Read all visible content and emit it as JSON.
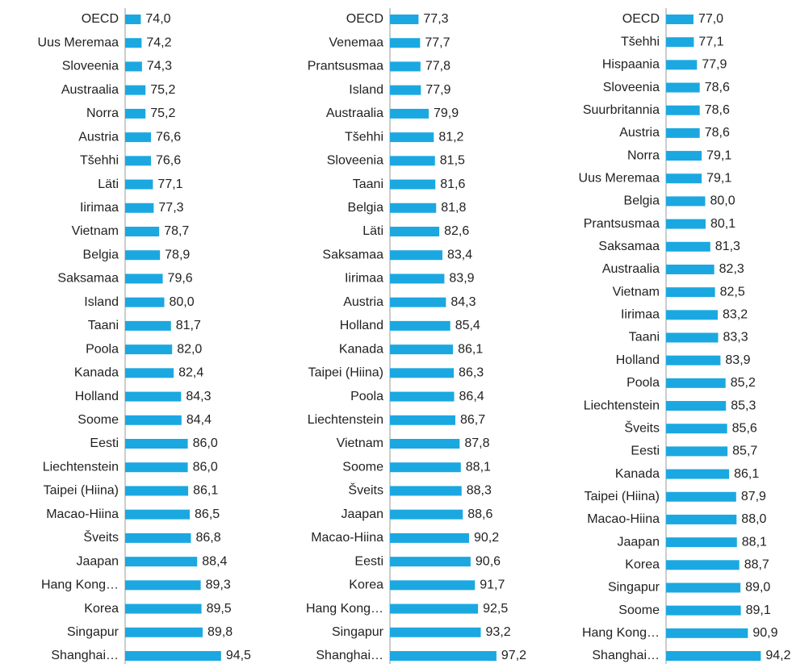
{
  "chart_data": [
    {
      "type": "bar",
      "color": "#1ba8e1",
      "xlim": [
        70,
        100
      ],
      "categories": [
        "OECD",
        "Uus Meremaa",
        "Sloveenia",
        "Austraalia",
        "Norra",
        "Austria",
        "Tšehhi",
        "Läti",
        "Iirimaa",
        "Vietnam",
        "Belgia",
        "Saksamaa",
        "Island",
        "Taani",
        "Poola",
        "Kanada",
        "Holland",
        "Soome",
        "Eesti",
        "Liechtenstein",
        "Taipei (Hiina)",
        "Macao-Hiina",
        "Šveits",
        "Jaapan",
        "Hang Kong…",
        "Korea",
        "Singapur",
        "Shanghai…"
      ],
      "values": [
        74.0,
        74.2,
        74.3,
        75.2,
        75.2,
        76.6,
        76.6,
        77.1,
        77.3,
        78.7,
        78.9,
        79.6,
        80.0,
        81.7,
        82.0,
        82.4,
        84.3,
        84.4,
        86.0,
        86.0,
        86.1,
        86.5,
        86.8,
        88.4,
        89.3,
        89.5,
        89.8,
        94.5
      ],
      "value_labels": [
        "74,0",
        "74,2",
        "74,3",
        "75,2",
        "75,2",
        "76,6",
        "76,6",
        "77,1",
        "77,3",
        "78,7",
        "78,9",
        "79,6",
        "80,0",
        "81,7",
        "82,0",
        "82,4",
        "84,3",
        "84,4",
        "86,0",
        "86,0",
        "86,1",
        "86,5",
        "86,8",
        "88,4",
        "89,3",
        "89,5",
        "89,8",
        "94,5"
      ]
    },
    {
      "type": "bar",
      "color": "#1ba8e1",
      "xlim": [
        70,
        100
      ],
      "categories": [
        "OECD",
        "Venemaa",
        "Prantsusmaa",
        "Island",
        "Austraalia",
        "Tšehhi",
        "Sloveenia",
        "Taani",
        "Belgia",
        "Läti",
        "Saksamaa",
        "Iirimaa",
        "Austria",
        "Holland",
        "Kanada",
        "Taipei (Hiina)",
        "Poola",
        "Liechtenstein",
        "Vietnam",
        "Soome",
        "Šveits",
        "Jaapan",
        "Macao-Hiina",
        "Eesti",
        "Korea",
        "Hang Kong…",
        "Singapur",
        "Shanghai…"
      ],
      "values": [
        77.3,
        77.7,
        77.8,
        77.9,
        79.9,
        81.2,
        81.5,
        81.6,
        81.8,
        82.6,
        83.4,
        83.9,
        84.3,
        85.4,
        86.1,
        86.3,
        86.4,
        86.7,
        87.8,
        88.1,
        88.3,
        88.6,
        90.2,
        90.6,
        91.7,
        92.5,
        93.2,
        97.2
      ],
      "value_labels": [
        "77,3",
        "77,7",
        "77,8",
        "77,9",
        "79,9",
        "81,2",
        "81,5",
        "81,6",
        "81,8",
        "82,6",
        "83,4",
        "83,9",
        "84,3",
        "85,4",
        "86,1",
        "86,3",
        "86,4",
        "86,7",
        "87,8",
        "88,1",
        "88,3",
        "88,6",
        "90,2",
        "90,6",
        "91,7",
        "92,5",
        "93,2",
        "97,2"
      ]
    },
    {
      "type": "bar",
      "color": "#1ba8e1",
      "xlim": [
        70,
        100
      ],
      "categories": [
        "OECD",
        "Tšehhi",
        "Hispaania",
        "Sloveenia",
        "Suurbritannia",
        "Austria",
        "Norra",
        "Uus Meremaa",
        "Belgia",
        "Prantsusmaa",
        "Saksamaa",
        "Austraalia",
        "Vietnam",
        "Iirimaa",
        "Taani",
        "Holland",
        "Poola",
        "Liechtenstein",
        "Šveits",
        "Eesti",
        "Kanada",
        "Taipei (Hiina)",
        "Macao-Hiina",
        "Jaapan",
        "Korea",
        "Singapur",
        "Soome",
        "Hang Kong…",
        "Shanghai…"
      ],
      "values": [
        77.0,
        77.1,
        77.9,
        78.6,
        78.6,
        78.6,
        79.1,
        79.1,
        80.0,
        80.1,
        81.3,
        82.3,
        82.5,
        83.2,
        83.3,
        83.9,
        85.2,
        85.3,
        85.6,
        85.7,
        86.1,
        87.9,
        88.0,
        88.1,
        88.7,
        89.0,
        89.1,
        90.9,
        94.2
      ],
      "value_labels": [
        "77,0",
        "77,1",
        "77,9",
        "78,6",
        "78,6",
        "78,6",
        "79,1",
        "79,1",
        "80,0",
        "80,1",
        "81,3",
        "82,3",
        "82,5",
        "83,2",
        "83,3",
        "83,9",
        "85,2",
        "85,3",
        "85,6",
        "85,7",
        "86,1",
        "87,9",
        "88,0",
        "88,1",
        "88,7",
        "89,0",
        "89,1",
        "90,9",
        "94,2"
      ]
    }
  ]
}
